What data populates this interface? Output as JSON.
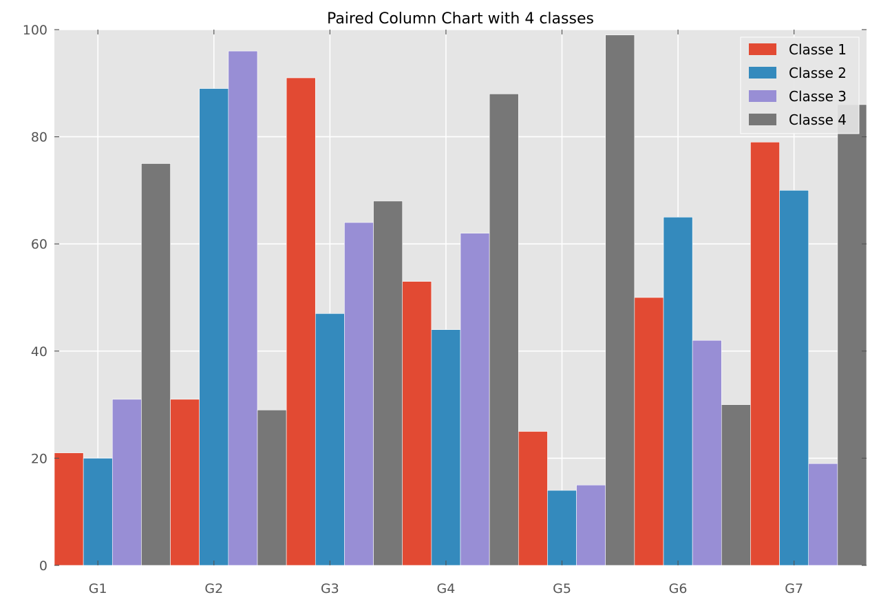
{
  "chart_data": {
    "type": "bar",
    "title": "Paired Column Chart with 4 classes",
    "xlabel": "",
    "ylabel": "",
    "categories": [
      "G1",
      "G2",
      "G3",
      "G4",
      "G5",
      "G6",
      "G7"
    ],
    "ylim": [
      0,
      100
    ],
    "yticks": [
      0,
      20,
      40,
      60,
      80,
      100
    ],
    "grid": true,
    "legend_position": "top-right",
    "series": [
      {
        "name": "Classe 1",
        "color": "#E24A33",
        "values": [
          21,
          31,
          91,
          53,
          25,
          50,
          79
        ]
      },
      {
        "name": "Classe 2",
        "color": "#348ABD",
        "values": [
          20,
          89,
          47,
          44,
          14,
          65,
          70
        ]
      },
      {
        "name": "Classe 3",
        "color": "#988ED5",
        "values": [
          31,
          96,
          64,
          62,
          15,
          42,
          19
        ]
      },
      {
        "name": "Classe 4",
        "color": "#777777",
        "values": [
          75,
          29,
          68,
          88,
          99,
          30,
          86
        ]
      }
    ]
  }
}
